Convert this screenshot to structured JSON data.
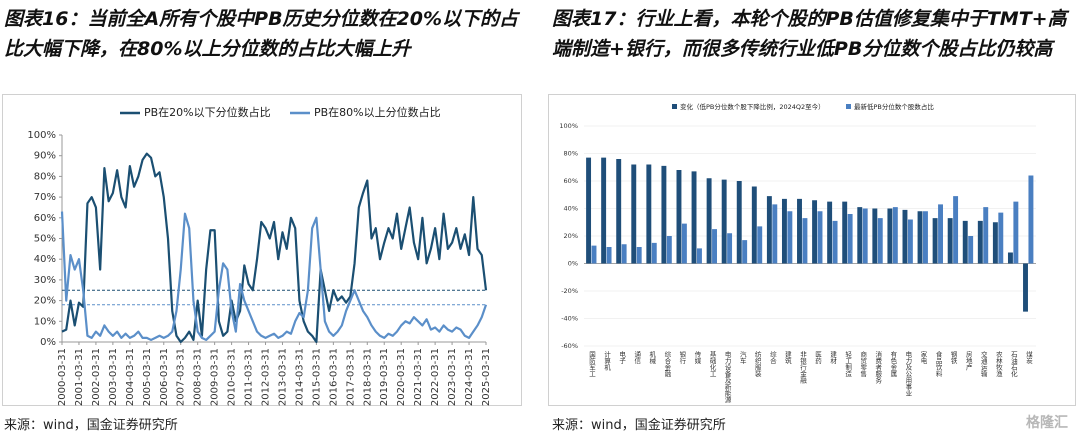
{
  "chart_data": [
    {
      "type": "line",
      "title": "图表16：当前全A所有个股中PB历史分位数在20%以下的占比大幅下降，在80%以上分位数的占比大幅上升",
      "source": "来源：wind，国金证券研究所",
      "categories": [
        "2000-03-31",
        null,
        null,
        null,
        "2001-03-31",
        null,
        null,
        null,
        "2002-03-31",
        null,
        null,
        null,
        "2003-03-31",
        null,
        null,
        null,
        "2004-03-31",
        null,
        null,
        null,
        "2005-03-31",
        null,
        null,
        null,
        "2006-03-31",
        null,
        null,
        null,
        "2007-03-31",
        null,
        null,
        null,
        "2008-03-31",
        null,
        null,
        null,
        "2009-03-31",
        null,
        null,
        null,
        "2010-03-31",
        null,
        null,
        null,
        "2011-03-31",
        null,
        null,
        null,
        "2012-03-31",
        null,
        null,
        null,
        "2013-03-31",
        null,
        null,
        null,
        "2014-03-31",
        null,
        null,
        null,
        "2015-03-31",
        null,
        null,
        null,
        "2016-03-31",
        null,
        null,
        null,
        "2017-03-31",
        null,
        null,
        null,
        "2018-03-31",
        null,
        null,
        null,
        "2019-03-31",
        null,
        null,
        null,
        "2020-03-31",
        null,
        null,
        null,
        "2021-03-31",
        null,
        null,
        null,
        "2022-03-31",
        null,
        null,
        null,
        "2023-03-31",
        null,
        null,
        null,
        "2024-03-31",
        null,
        null,
        null,
        "2025-03-31"
      ],
      "series": [
        {
          "name": "PB在20%以下分位数占比",
          "color": "#1b4f72",
          "values": [
            5,
            6,
            20,
            8,
            19,
            17,
            67,
            70,
            65,
            35,
            84,
            68,
            72,
            83,
            70,
            65,
            85,
            75,
            80,
            88,
            91,
            89,
            80,
            82,
            70,
            50,
            15,
            3,
            0,
            2,
            5,
            1,
            20,
            3,
            35,
            54,
            54,
            10,
            3,
            5,
            20,
            10,
            15,
            37,
            28,
            25,
            40,
            58,
            55,
            50,
            58,
            40,
            53,
            45,
            60,
            55,
            20,
            10,
            5,
            3,
            0,
            35,
            25,
            15,
            25,
            20,
            22,
            19,
            22,
            38,
            65,
            72,
            78,
            50,
            55,
            40,
            48,
            55,
            50,
            62,
            45,
            55,
            65,
            48,
            40,
            60,
            38,
            45,
            55,
            40,
            62,
            45,
            48,
            55,
            45,
            52,
            42,
            70,
            45,
            42,
            25
          ]
        },
        {
          "name": "PB在80%以上分位数占比",
          "color": "#5b8fc9",
          "values": [
            63,
            20,
            42,
            35,
            40,
            25,
            3,
            2,
            5,
            3,
            8,
            5,
            3,
            5,
            2,
            4,
            2,
            3,
            5,
            2,
            2,
            1,
            2,
            3,
            2,
            3,
            5,
            15,
            35,
            62,
            55,
            20,
            5,
            2,
            1,
            3,
            5,
            25,
            38,
            35,
            15,
            5,
            28,
            20,
            15,
            10,
            5,
            3,
            2,
            3,
            4,
            2,
            3,
            5,
            4,
            10,
            14,
            12,
            25,
            55,
            60,
            35,
            10,
            5,
            3,
            5,
            8,
            15,
            20,
            25,
            20,
            15,
            12,
            8,
            5,
            3,
            2,
            4,
            3,
            5,
            8,
            10,
            9,
            12,
            10,
            8,
            11,
            6,
            7,
            5,
            8,
            6,
            5,
            7,
            6,
            3,
            2,
            5,
            8,
            12,
            18
          ]
        }
      ],
      "reference_lines": [
        {
          "value": 25,
          "color": "#1b4f72"
        },
        {
          "value": 18,
          "color": "#5b8fc9"
        }
      ],
      "ylim": [
        0,
        100
      ],
      "yticks": [
        {
          "value": 0,
          "label": "0%"
        },
        {
          "value": 10,
          "label": "10%"
        },
        {
          "value": 20,
          "label": "20%"
        },
        {
          "value": 30,
          "label": "30%"
        },
        {
          "value": 40,
          "label": "40%"
        },
        {
          "value": 50,
          "label": "50%"
        },
        {
          "value": 60,
          "label": "60%"
        },
        {
          "value": 70,
          "label": "70%"
        },
        {
          "value": 80,
          "label": "80%"
        },
        {
          "value": 90,
          "label": "90%"
        },
        {
          "value": 100,
          "label": "100%"
        }
      ],
      "grid": false
    },
    {
      "type": "bar",
      "title": "图表17：行业上看，本轮个股的PB估值修复集中于TMT+高端制造+银行，而很多传统行业低PB分位数个股占比仍较高",
      "source": "来源：wind，国金证券研究所",
      "watermark": "格隆汇",
      "categories": [
        "国防军工",
        "计算机",
        "电子",
        "通信",
        "机械",
        "综合金融",
        "银行",
        "传媒",
        "基础化工",
        "电力设备及新能源",
        "汽车",
        "纺织服装",
        "综合",
        "建筑",
        "非银行金融",
        "医药",
        "建材",
        "轻工制造",
        "商贸零售",
        "消费者服务",
        "有色金属",
        "电力及公用事业",
        "家电",
        "食品饮料",
        "钢铁",
        "房地产",
        "交通运输",
        "农林牧渔",
        "石油石化",
        "煤炭"
      ],
      "series": [
        {
          "name": "变化（低PB分位数个股下降比例，2024Q2至今）",
          "color": "#1f4e79",
          "values": [
            77,
            77,
            76,
            72,
            72,
            71,
            68,
            67,
            62,
            61,
            60,
            56,
            49,
            47,
            47,
            46,
            45,
            45,
            41,
            40,
            40,
            39,
            38,
            33,
            33,
            31,
            31,
            30,
            8,
            -35
          ]
        },
        {
          "name": "最新低PB分位数个股数占比",
          "color": "#4a7fc1",
          "values": [
            13,
            12,
            14,
            12,
            15,
            20,
            29,
            11,
            25,
            22,
            17,
            27,
            43,
            38,
            33,
            38,
            31,
            36,
            40,
            33,
            41,
            32,
            38,
            43,
            49,
            20,
            41,
            37,
            45,
            64
          ]
        }
      ],
      "ylim": [
        -60,
        100
      ],
      "yticks": [
        {
          "value": -60,
          "label": "-60%"
        },
        {
          "value": -40,
          "label": "-40%"
        },
        {
          "value": -20,
          "label": "-20%"
        },
        {
          "value": 0,
          "label": "0%"
        },
        {
          "value": 20,
          "label": "20%"
        },
        {
          "value": 40,
          "label": "40%"
        },
        {
          "value": 60,
          "label": "60%"
        },
        {
          "value": 80,
          "label": "80%"
        },
        {
          "value": 100,
          "label": "100%"
        }
      ],
      "grid": true
    }
  ]
}
